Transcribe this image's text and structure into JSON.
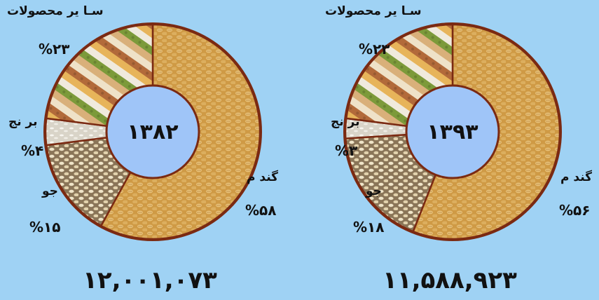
{
  "colors": {
    "background": "#9fd2f4",
    "center": "#9fc5f8",
    "ring": "#7b2a12",
    "wheat": "#d4a34f",
    "barley": "#e6d8b6",
    "rice": "#e9e4d8",
    "other": "#c9925c"
  },
  "chart_data": [
    {
      "type": "pie",
      "center_label": "۱۳۸۲",
      "total_label": "۱۲,۰۰۱,۰۷۳",
      "slices": [
        {
          "label": "گند م",
          "value": 58,
          "pct_label": "%۵۸",
          "color": "#d4a34f",
          "texture": "wheat"
        },
        {
          "label": "جو",
          "value": 15,
          "pct_label": "%۱۵",
          "color": "#e6d8b6",
          "texture": "barley"
        },
        {
          "label": "بر نج",
          "value": 4,
          "pct_label": "%۴",
          "color": "#ebe6db",
          "texture": "rice"
        },
        {
          "label": "سـا یر محصولات",
          "value": 23,
          "pct_label": "%۲۳",
          "color": "#c9925c",
          "texture": "other"
        }
      ]
    },
    {
      "type": "pie",
      "center_label": "۱۳۹۳",
      "total_label": "۱۱,۵۸۸,۹۲۳",
      "slices": [
        {
          "label": "گند م",
          "value": 56,
          "pct_label": "%۵۶",
          "color": "#d4a34f",
          "texture": "wheat"
        },
        {
          "label": "جو",
          "value": 18,
          "pct_label": "%۱۸",
          "color": "#e6d8b6",
          "texture": "barley"
        },
        {
          "label": "بر نج",
          "value": 3,
          "pct_label": "%۳",
          "color": "#ebe6db",
          "texture": "rice"
        },
        {
          "label": "سـا یر محصولات",
          "value": 23,
          "pct_label": "%۲۳",
          "color": "#c9925c",
          "texture": "other"
        }
      ]
    }
  ]
}
